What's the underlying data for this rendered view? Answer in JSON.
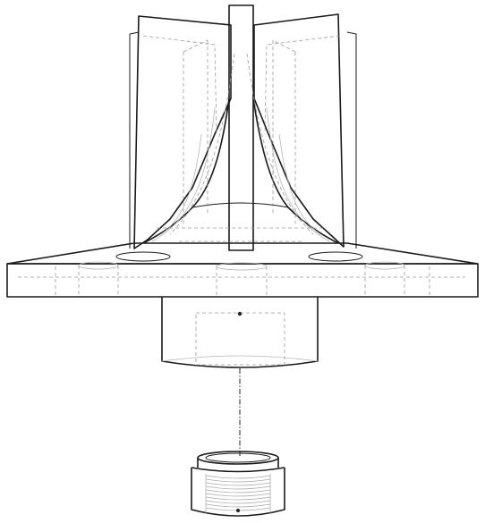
{
  "drawing": {
    "kind": "exploded technical line drawing",
    "colors": {
      "background": "#ffffff",
      "visible_edges": "#1a1a1a",
      "hidden_edges": "#9a9a9a"
    }
  }
}
